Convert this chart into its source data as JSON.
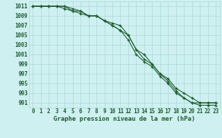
{
  "title": "Graphe pression niveau de la mer (hPa)",
  "x": [
    0,
    1,
    2,
    3,
    4,
    5,
    6,
    7,
    8,
    9,
    10,
    11,
    12,
    13,
    14,
    15,
    16,
    17,
    18,
    19,
    20,
    21,
    22,
    23
  ],
  "line1": [
    1011,
    1011,
    1011,
    1011,
    1011,
    1010,
    1010,
    1009,
    1009,
    1008,
    1007,
    1006,
    1005,
    1002,
    1000,
    999,
    997,
    996,
    994,
    993,
    992,
    991,
    991,
    991
  ],
  "line2": [
    1011,
    1011,
    1011,
    1011,
    1010.5,
    1010,
    1009.5,
    1009,
    1009,
    1008,
    1007,
    1006,
    1004,
    1001,
    999.5,
    998.5,
    996.5,
    995,
    993,
    992,
    991,
    991,
    991,
    991
  ],
  "line3": [
    1011,
    1011,
    1011,
    1011,
    1011,
    1010.5,
    1010,
    1009,
    1009,
    1008,
    1007.5,
    1007,
    1005,
    1002,
    1001,
    999,
    997,
    995.5,
    993.5,
    992,
    991,
    990.5,
    990.5,
    990.5
  ],
  "ylim": [
    990,
    1012
  ],
  "yticks": [
    991,
    993,
    995,
    997,
    999,
    1001,
    1003,
    1005,
    1007,
    1009,
    1011
  ],
  "bg_color": "#cff0f0",
  "grid_color": "#a8d8d8",
  "line_color": "#1a5c2a",
  "marker": "+",
  "title_fontsize": 6.5,
  "tick_fontsize": 5.5
}
